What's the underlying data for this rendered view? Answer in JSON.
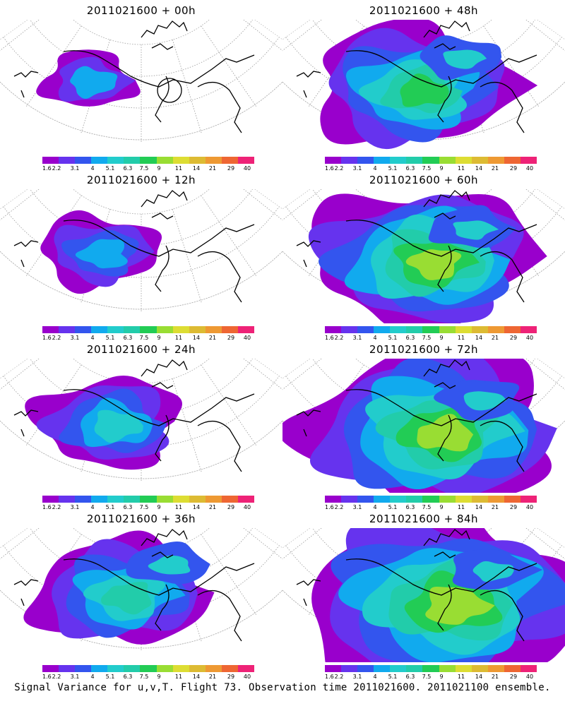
{
  "colors": [
    "#9900cc",
    "#6633ee",
    "#3355ee",
    "#11aaee",
    "#22cccc",
    "#22ccaa",
    "#22cc55",
    "#99dd33",
    "#dddd33",
    "#ddbb33",
    "#ee9933",
    "#ee6633",
    "#ee2277"
  ],
  "colorbar_labels": [
    "1.6",
    "2.2",
    "3.1",
    "4",
    "5.1",
    "6.3",
    "7.5",
    "9",
    "11",
    "14",
    "21",
    "29",
    "40"
  ],
  "panels": [
    {
      "title": "2011021600 + 00h",
      "level": 0
    },
    {
      "title": "2011021600 + 48h",
      "level": 4
    },
    {
      "title": "2011021600 + 12h",
      "level": 1
    },
    {
      "title": "2011021600 + 60h",
      "level": 5
    },
    {
      "title": "2011021600 + 24h",
      "level": 2
    },
    {
      "title": "2011021600 + 72h",
      "level": 6
    },
    {
      "title": "2011021600 + 36h",
      "level": 3
    },
    {
      "title": "2011021600 + 84h",
      "level": 7
    }
  ],
  "footer": "Signal Variance for u,v,T. Flight 73. Observation time 2011021600. 2011021100 ensemble."
}
